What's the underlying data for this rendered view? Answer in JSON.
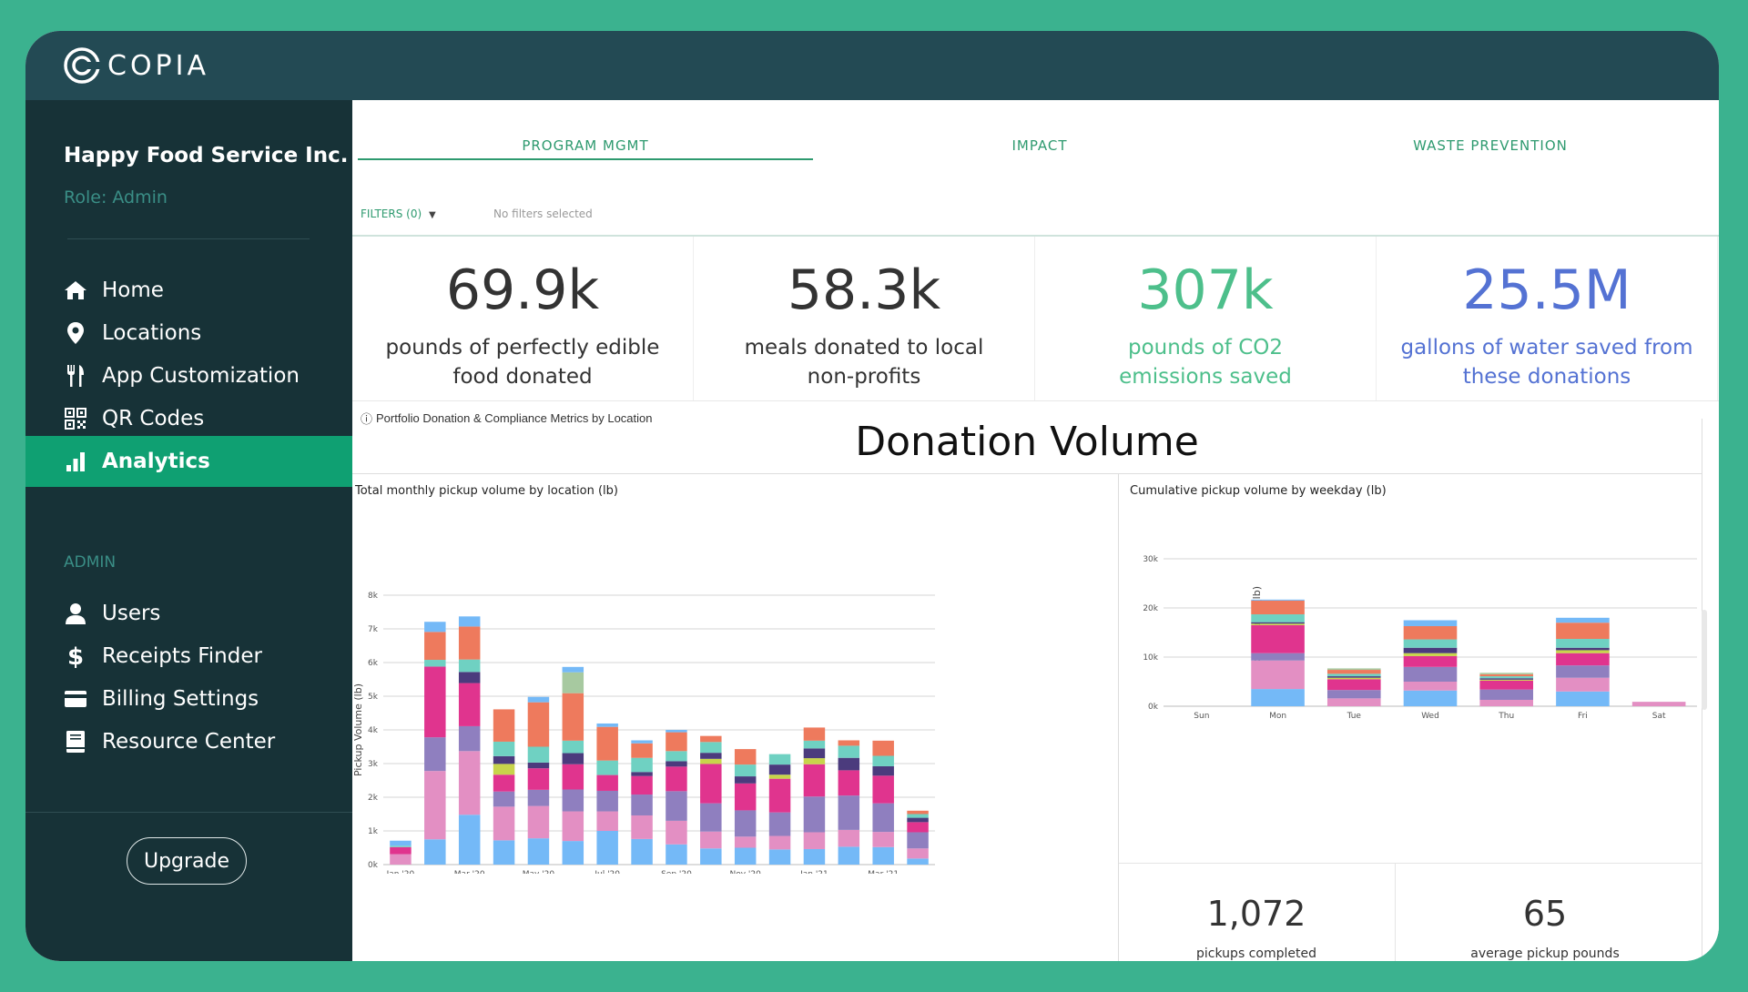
{
  "brand": {
    "name": "COPIA"
  },
  "sidebar": {
    "company": "Happy Food Service Inc.",
    "role": "Role: Admin",
    "items": [
      {
        "label": "Home",
        "icon": "home-icon"
      },
      {
        "label": "Locations",
        "icon": "location-pin-icon"
      },
      {
        "label": "App Customization",
        "icon": "fork-knife-icon"
      },
      {
        "label": "QR Codes",
        "icon": "qr-code-icon"
      },
      {
        "label": "Analytics",
        "icon": "bar-chart-icon",
        "active": true
      }
    ],
    "admin_label": "ADMIN",
    "admin_items": [
      {
        "label": "Users",
        "icon": "user-icon"
      },
      {
        "label": "Receipts Finder",
        "icon": "dollar-icon"
      },
      {
        "label": "Billing Settings",
        "icon": "credit-card-icon"
      },
      {
        "label": "Resource Center",
        "icon": "book-icon"
      }
    ],
    "upgrade_label": "Upgrade"
  },
  "tabs": [
    {
      "label": "PROGRAM MGMT",
      "active": true
    },
    {
      "label": "IMPACT"
    },
    {
      "label": "WASTE PREVENTION"
    }
  ],
  "filters": {
    "label": "FILTERS (0)",
    "status": "No filters selected"
  },
  "kpis": [
    {
      "value": "69.9k",
      "label": "pounds of perfectly edible food donated",
      "color": "#333333"
    },
    {
      "value": "58.3k",
      "label": "meals donated to local non-profits",
      "color": "#333333"
    },
    {
      "value": "307k",
      "label": "pounds of CO2 emissions saved",
      "color": "#4dbf8b"
    },
    {
      "value": "25.5M",
      "label": "gallons of water saved from these donations",
      "color": "#5472d3"
    }
  ],
  "portfolio_label": "Portfolio Donation & Compliance Metrics by Location",
  "section_title": "Donation Volume",
  "colors": [
    "#74b9f7",
    "#e38fc3",
    "#8f7fbf",
    "#e0348e",
    "#c8d44b",
    "#4b3b7d",
    "#6fd1c2",
    "#ee7a5d",
    "#a7c9a0"
  ],
  "chart_data": [
    {
      "type": "bar",
      "stacked": true,
      "title": "Total monthly pickup volume by location (lb)",
      "ylabel": "Pickup Volume (lb)",
      "ylim": [
        0,
        8000
      ],
      "yticks": [
        "0k",
        "1k",
        "2k",
        "3k",
        "4k",
        "5k",
        "6k",
        "7k",
        "8k"
      ],
      "categories": [
        "Jan '20",
        "Feb '20",
        "Mar '20",
        "Apr '20",
        "May '20",
        "Jun '20",
        "Jul '20",
        "Aug '20",
        "Sep '20",
        "Oct '20",
        "Nov '20",
        "Dec '20",
        "Jan '21",
        "Feb '21",
        "Mar '21",
        "Apr '21"
      ],
      "tick_labels": [
        "Jan '20",
        "",
        "Mar '20",
        "",
        "May '20",
        "",
        "Jul '20",
        "",
        "Sep '20",
        "",
        "Nov '20",
        "",
        "Jan '21",
        "",
        "Mar '21",
        ""
      ],
      "series": [
        {
          "values": [
            0,
            750,
            1480,
            720,
            780,
            700,
            1000,
            760,
            600,
            480,
            500,
            450,
            460,
            530,
            520,
            180
          ]
        },
        {
          "values": [
            310,
            2030,
            1890,
            1000,
            960,
            880,
            580,
            700,
            700,
            500,
            330,
            400,
            500,
            500,
            450,
            300
          ]
        },
        {
          "values": [
            0,
            1000,
            740,
            450,
            480,
            650,
            610,
            620,
            880,
            840,
            780,
            700,
            1060,
            1020,
            850,
            480
          ]
        },
        {
          "values": [
            210,
            2100,
            1280,
            500,
            640,
            750,
            470,
            550,
            730,
            1170,
            800,
            1000,
            960,
            750,
            820,
            300
          ]
        },
        {
          "values": [
            0,
            0,
            0,
            320,
            0,
            0,
            0,
            0,
            0,
            150,
            0,
            120,
            180,
            0,
            0,
            0
          ]
        },
        {
          "values": [
            0,
            0,
            330,
            230,
            170,
            330,
            0,
            120,
            160,
            180,
            210,
            300,
            290,
            370,
            280,
            130
          ]
        },
        {
          "values": [
            40,
            200,
            370,
            430,
            470,
            370,
            430,
            420,
            300,
            320,
            350,
            310,
            230,
            360,
            310,
            110
          ]
        },
        {
          "values": [
            0,
            830,
            980,
            960,
            1320,
            1410,
            1000,
            430,
            560,
            180,
            460,
            0,
            390,
            160,
            450,
            100
          ]
        },
        {
          "values": [
            0,
            0,
            0,
            0,
            0,
            620,
            0,
            0,
            0,
            0,
            0,
            0,
            0,
            0,
            0,
            0
          ]
        },
        {
          "values": [
            150,
            300,
            300,
            0,
            160,
            160,
            100,
            90,
            70,
            0,
            0,
            0,
            0,
            0,
            0,
            0
          ]
        }
      ]
    },
    {
      "type": "bar",
      "stacked": true,
      "title": "Cumulative pickup volume by weekday (lb)",
      "ylabel": "Pickup Volume (lb)",
      "ylim": [
        0,
        30000
      ],
      "yticks": [
        "0k",
        "10k",
        "20k",
        "30k"
      ],
      "categories": [
        "Sun",
        "Mon",
        "Tue",
        "Wed",
        "Thu",
        "Fri",
        "Sat"
      ],
      "series": [
        {
          "values": [
            0,
            3500,
            0,
            3200,
            0,
            3000,
            0
          ]
        },
        {
          "values": [
            0,
            5800,
            1600,
            1800,
            1300,
            2800,
            900
          ]
        },
        {
          "values": [
            0,
            1500,
            1700,
            3000,
            2100,
            2500,
            0
          ]
        },
        {
          "values": [
            0,
            5700,
            2200,
            2200,
            1800,
            2500,
            0
          ]
        },
        {
          "values": [
            0,
            300,
            300,
            600,
            200,
            600,
            0
          ]
        },
        {
          "values": [
            0,
            300,
            300,
            1100,
            300,
            500,
            0
          ]
        },
        {
          "values": [
            0,
            1600,
            500,
            1700,
            400,
            1800,
            0
          ]
        },
        {
          "values": [
            0,
            2800,
            800,
            2700,
            400,
            3300,
            0
          ]
        },
        {
          "values": [
            0,
            0,
            300,
            0,
            300,
            0,
            0
          ]
        },
        {
          "values": [
            0,
            200,
            0,
            1200,
            0,
            1000,
            0
          ]
        }
      ]
    }
  ],
  "stats": [
    {
      "value": "1,072",
      "label": "pickups completed"
    },
    {
      "value": "65",
      "label": "average pickup pounds"
    }
  ]
}
